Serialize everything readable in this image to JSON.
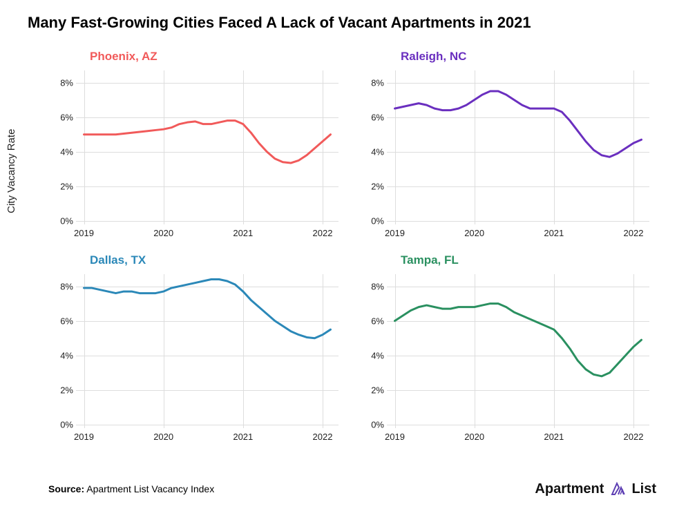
{
  "title": "Many Fast-Growing Cities Faced A Lack of Vacant Apartments in 2021",
  "y_axis_label": "City Vacancy Rate",
  "source_label": "Source:",
  "source_text": "Apartment List Vacancy Index",
  "logo_text": "Apartment",
  "logo_text2": "List",
  "logo_color": "#5d3eb3",
  "chart_settings": {
    "type": "line",
    "background_color": "#ffffff",
    "grid_color": "#dddddd",
    "text_color": "#222222",
    "title_fontsize": 22,
    "panel_title_fontsize": 17,
    "tick_fontsize": 13,
    "line_width": 3,
    "x_domain": [
      2018.9,
      2022.2
    ],
    "x_ticks": [
      2019,
      2020,
      2021,
      2022
    ],
    "y_domain": [
      -0.2,
      8.7
    ],
    "y_ticks": [
      0,
      2,
      4,
      6,
      8
    ],
    "y_tick_labels": [
      "0%",
      "2%",
      "4%",
      "6%",
      "8%"
    ],
    "panels_layout": "2x2"
  },
  "panels": [
    {
      "title": "Phoenix, AZ",
      "color": "#f15a5a",
      "x": [
        2019.0,
        2019.1,
        2019.2,
        2019.3,
        2019.4,
        2019.5,
        2019.6,
        2019.7,
        2019.8,
        2019.9,
        2020.0,
        2020.1,
        2020.2,
        2020.3,
        2020.4,
        2020.5,
        2020.6,
        2020.7,
        2020.8,
        2020.9,
        2021.0,
        2021.1,
        2021.2,
        2021.3,
        2021.4,
        2021.5,
        2021.6,
        2021.7,
        2021.8,
        2021.9,
        2022.0,
        2022.1
      ],
      "y": [
        5.0,
        5.0,
        5.0,
        5.0,
        5.0,
        5.05,
        5.1,
        5.15,
        5.2,
        5.25,
        5.3,
        5.4,
        5.6,
        5.7,
        5.75,
        5.6,
        5.6,
        5.7,
        5.8,
        5.8,
        5.6,
        5.1,
        4.5,
        4.0,
        3.6,
        3.4,
        3.35,
        3.5,
        3.8,
        4.2,
        4.6,
        5.0
      ]
    },
    {
      "title": "Raleigh, NC",
      "color": "#6a2fbf",
      "x": [
        2019.0,
        2019.1,
        2019.2,
        2019.3,
        2019.4,
        2019.5,
        2019.6,
        2019.7,
        2019.8,
        2019.9,
        2020.0,
        2020.1,
        2020.2,
        2020.3,
        2020.4,
        2020.5,
        2020.6,
        2020.7,
        2020.8,
        2020.9,
        2021.0,
        2021.1,
        2021.2,
        2021.3,
        2021.4,
        2021.5,
        2021.6,
        2021.7,
        2021.8,
        2021.9,
        2022.0,
        2022.1
      ],
      "y": [
        6.5,
        6.6,
        6.7,
        6.8,
        6.7,
        6.5,
        6.4,
        6.4,
        6.5,
        6.7,
        7.0,
        7.3,
        7.5,
        7.5,
        7.3,
        7.0,
        6.7,
        6.5,
        6.5,
        6.5,
        6.5,
        6.3,
        5.8,
        5.2,
        4.6,
        4.1,
        3.8,
        3.7,
        3.9,
        4.2,
        4.5,
        4.7
      ]
    },
    {
      "title": "Dallas, TX",
      "color": "#2b88b8",
      "x": [
        2019.0,
        2019.1,
        2019.2,
        2019.3,
        2019.4,
        2019.5,
        2019.6,
        2019.7,
        2019.8,
        2019.9,
        2020.0,
        2020.1,
        2020.2,
        2020.3,
        2020.4,
        2020.5,
        2020.6,
        2020.7,
        2020.8,
        2020.9,
        2021.0,
        2021.1,
        2021.2,
        2021.3,
        2021.4,
        2021.5,
        2021.6,
        2021.7,
        2021.8,
        2021.9,
        2022.0,
        2022.1
      ],
      "y": [
        7.9,
        7.9,
        7.8,
        7.7,
        7.6,
        7.7,
        7.7,
        7.6,
        7.6,
        7.6,
        7.7,
        7.9,
        8.0,
        8.1,
        8.2,
        8.3,
        8.4,
        8.4,
        8.3,
        8.1,
        7.7,
        7.2,
        6.8,
        6.4,
        6.0,
        5.7,
        5.4,
        5.2,
        5.05,
        5.0,
        5.2,
        5.5
      ]
    },
    {
      "title": "Tampa, FL",
      "color": "#2a9060",
      "x": [
        2019.0,
        2019.1,
        2019.2,
        2019.3,
        2019.4,
        2019.5,
        2019.6,
        2019.7,
        2019.8,
        2019.9,
        2020.0,
        2020.1,
        2020.2,
        2020.3,
        2020.4,
        2020.5,
        2020.6,
        2020.7,
        2020.8,
        2020.9,
        2021.0,
        2021.1,
        2021.2,
        2021.3,
        2021.4,
        2021.5,
        2021.6,
        2021.7,
        2021.8,
        2021.9,
        2022.0,
        2022.1
      ],
      "y": [
        6.0,
        6.3,
        6.6,
        6.8,
        6.9,
        6.8,
        6.7,
        6.7,
        6.8,
        6.8,
        6.8,
        6.9,
        7.0,
        7.0,
        6.8,
        6.5,
        6.3,
        6.1,
        5.9,
        5.7,
        5.5,
        5.0,
        4.4,
        3.7,
        3.2,
        2.9,
        2.8,
        3.0,
        3.5,
        4.0,
        4.5,
        4.9
      ]
    }
  ]
}
